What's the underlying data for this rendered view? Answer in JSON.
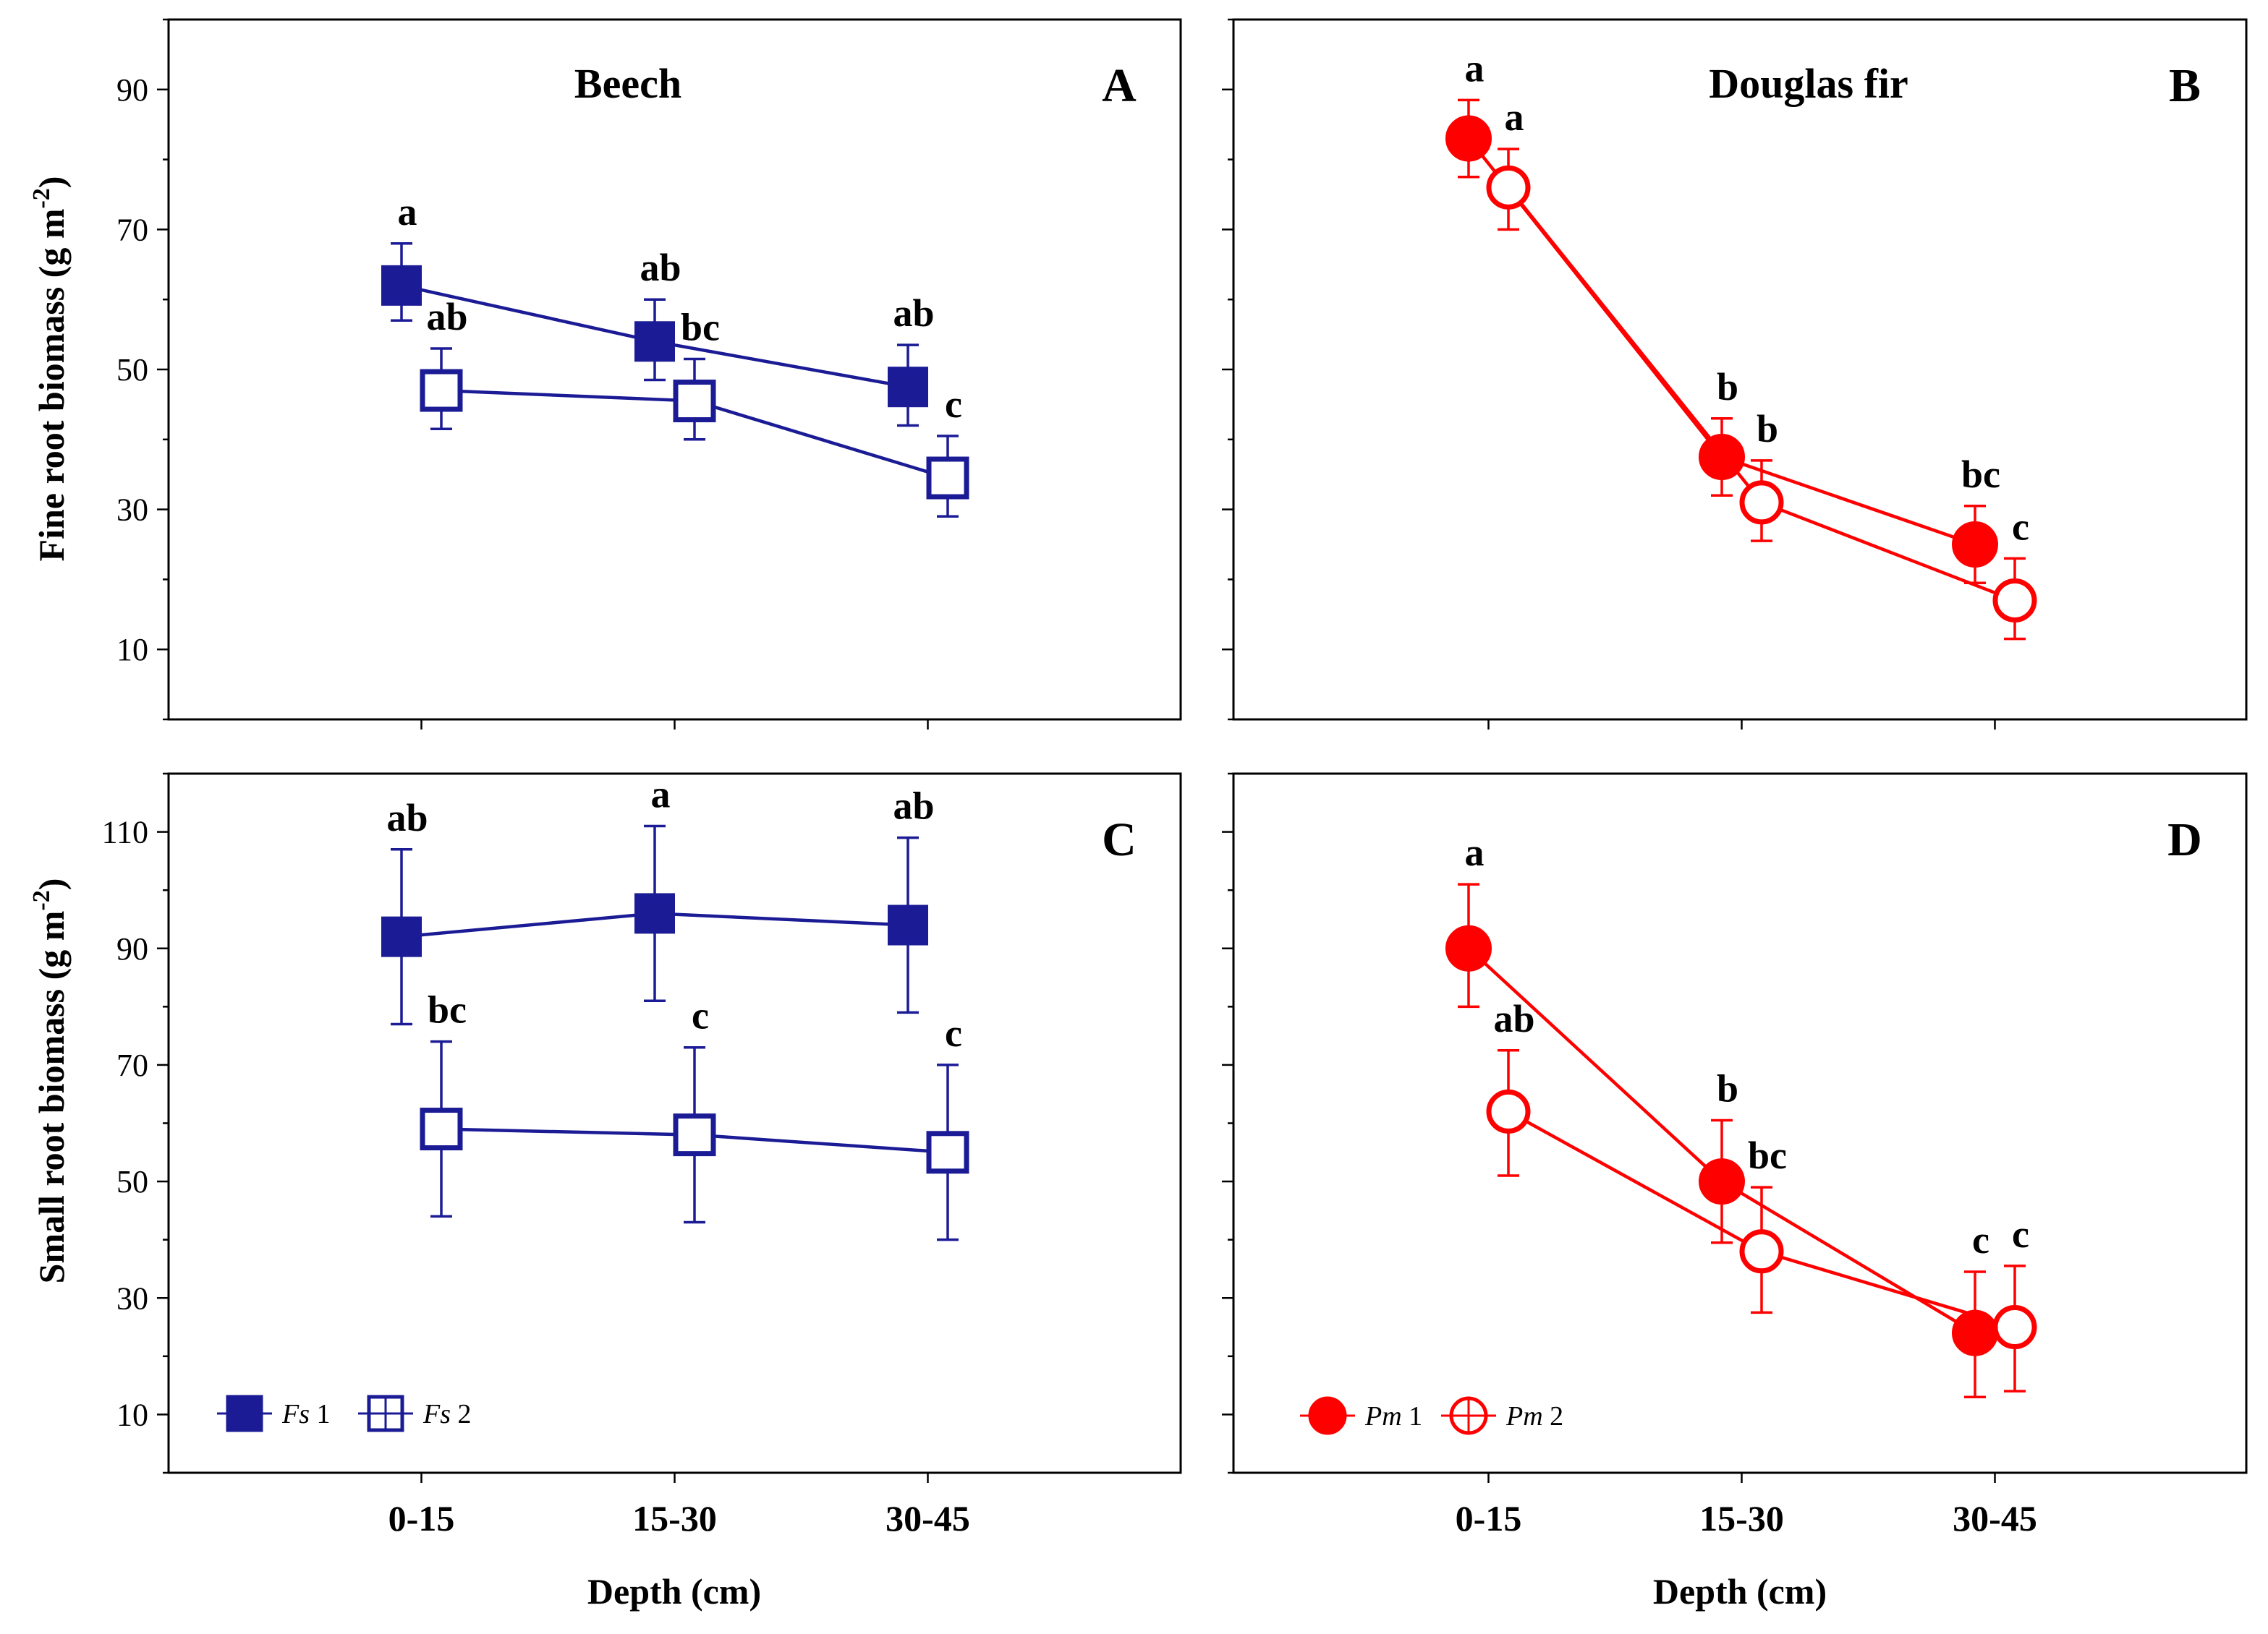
{
  "figure": {
    "x_axis_title": "Depth (cm)",
    "y_axis_title_top": "Fine root biomass (g m",
    "y_axis_title_bottom": "Small root biomass (g m",
    "y_axis_title_sup": "-2",
    "y_axis_title_close": ")"
  },
  "chart_data": [
    {
      "type": "line",
      "panel": "A",
      "title": "Beech",
      "panel_letter": "A",
      "categories": [
        "0-15",
        "15-30",
        "30-45"
      ],
      "xlabel": "Depth (cm)",
      "ylabel": "Fine root biomass (g m-2)",
      "ylim": [
        0,
        100
      ],
      "yticks": [
        10,
        30,
        50,
        70,
        90
      ],
      "color": "#1b1b96",
      "series": [
        {
          "name": "Fs 1",
          "marker": "square-filled",
          "values": [
            62,
            54,
            47.5
          ],
          "err_low": [
            57,
            48.5,
            42
          ],
          "err_high": [
            68,
            60,
            53.5
          ],
          "letters": [
            "a",
            "ab",
            "ab"
          ]
        },
        {
          "name": "Fs 2",
          "marker": "square-open",
          "values": [
            47,
            45.5,
            34.5
          ],
          "err_low": [
            41.5,
            40,
            29
          ],
          "err_high": [
            53,
            51.5,
            40.5
          ],
          "letters": [
            "ab",
            "bc",
            "c"
          ]
        }
      ]
    },
    {
      "type": "line",
      "panel": "B",
      "title": "Douglas fir",
      "panel_letter": "B",
      "categories": [
        "0-15",
        "15-30",
        "30-45"
      ],
      "xlabel": "Depth (cm)",
      "ylabel": "Fine root biomass (g m-2)",
      "ylim": [
        0,
        100
      ],
      "yticks": [
        10,
        30,
        50,
        70,
        90
      ],
      "color": "#ff0000",
      "series": [
        {
          "name": "Pm 1",
          "marker": "circle-filled",
          "values": [
            83,
            37.5,
            25
          ],
          "err_low": [
            77.5,
            32,
            19.5
          ],
          "err_high": [
            88.5,
            43,
            30.5
          ],
          "letters": [
            "a",
            "b",
            "bc"
          ]
        },
        {
          "name": "Pm 2",
          "marker": "circle-open",
          "values": [
            76,
            31,
            17
          ],
          "err_low": [
            70,
            25.5,
            11.5
          ],
          "err_high": [
            81.5,
            37,
            23
          ],
          "letters": [
            "a",
            "b",
            "c"
          ]
        }
      ]
    },
    {
      "type": "line",
      "panel": "C",
      "title": "",
      "panel_letter": "C",
      "categories": [
        "0-15",
        "15-30",
        "30-45"
      ],
      "xlabel": "Depth (cm)",
      "ylabel": "Small root biomass (g m-2)",
      "ylim": [
        0,
        120
      ],
      "yticks": [
        10,
        30,
        50,
        70,
        90,
        110
      ],
      "color": "#1b1b96",
      "series": [
        {
          "name": "Fs 1",
          "marker": "square-filled",
          "values": [
            92,
            96,
            94
          ],
          "err_low": [
            77,
            81,
            79
          ],
          "err_high": [
            107,
            111,
            109
          ],
          "letters": [
            "ab",
            "a",
            "ab"
          ]
        },
        {
          "name": "Fs 2",
          "marker": "square-open",
          "values": [
            59,
            58,
            55
          ],
          "err_low": [
            44,
            43,
            40
          ],
          "err_high": [
            74,
            73,
            70
          ],
          "letters": [
            "bc",
            "c",
            "c"
          ]
        }
      ]
    },
    {
      "type": "line",
      "panel": "D",
      "title": "",
      "panel_letter": "D",
      "categories": [
        "0-15",
        "15-30",
        "30-45"
      ],
      "xlabel": "Depth (cm)",
      "ylabel": "Small root biomass (g m-2)",
      "ylim": [
        0,
        120
      ],
      "yticks": [
        10,
        30,
        50,
        70,
        90,
        110
      ],
      "color": "#ff0000",
      "series": [
        {
          "name": "Pm 1",
          "marker": "circle-filled",
          "values": [
            90,
            50,
            24
          ],
          "err_low": [
            80,
            39.5,
            13
          ],
          "err_high": [
            101,
            60.5,
            34.5
          ],
          "letters": [
            "a",
            "b",
            "c"
          ]
        },
        {
          "name": "Pm 2",
          "marker": "circle-open",
          "values": [
            62,
            38,
            25
          ],
          "err_low": [
            51,
            27.5,
            14
          ],
          "err_high": [
            72.5,
            49,
            35.5
          ],
          "letters": [
            "ab",
            "bc",
            "c"
          ]
        }
      ]
    }
  ],
  "legends": {
    "left": [
      {
        "italic": "Fs",
        "rest": " 1",
        "marker": "square-filled"
      },
      {
        "italic": "Fs",
        "rest": " 2",
        "marker": "square-open"
      }
    ],
    "right": [
      {
        "italic": "Pm",
        "rest": " 1",
        "marker": "circle-filled"
      },
      {
        "italic": "Pm",
        "rest": " 2",
        "marker": "circle-open"
      }
    ]
  }
}
